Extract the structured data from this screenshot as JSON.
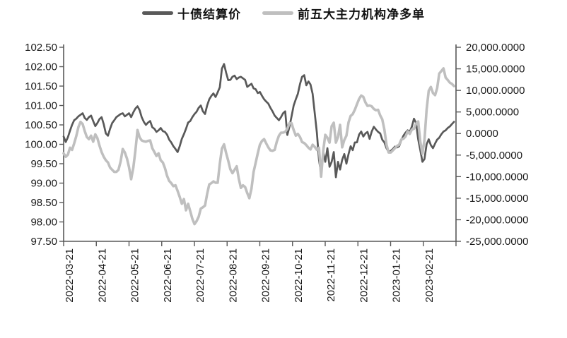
{
  "legend": {
    "items": [
      {
        "label": "十债结算价",
        "color": "#595959"
      },
      {
        "label": "前五大主力机构净多单",
        "color": "#bfbfbf"
      }
    ]
  },
  "chart_data": {
    "type": "line",
    "title": "",
    "legend_position": "top-center",
    "grid": false,
    "x_axis": {
      "tick_labels": [
        "2022-03-21",
        "2022-04-21",
        "2022-05-21",
        "2022-06-21",
        "2022-07-21",
        "2022-08-21",
        "2022-09-21",
        "2022-10-21",
        "2022-11-21",
        "2022-12-21",
        "2023-01-21",
        "2023-02-21"
      ],
      "num_ticks": 13,
      "label_rotation_deg": -90
    },
    "left_axis": {
      "min": 97.5,
      "max": 102.5,
      "step": 0.5,
      "tick_labels": [
        "102.50",
        "102.00",
        "101.50",
        "101.00",
        "100.50",
        "100.00",
        "99.50",
        "99.00",
        "98.50",
        "98.00",
        "97.50"
      ]
    },
    "right_axis": {
      "min": -25000,
      "max": 20000,
      "step": 5000,
      "tick_labels": [
        "20,000.0000",
        "15,000.0000",
        "10,000.0000",
        "5,000.0000",
        "0.0000",
        "-5,000.0000",
        "-10,000.0000",
        "-15,000.0000",
        "-20,000.0000",
        "-25,000.0000"
      ]
    },
    "x_end_fraction": 0.995,
    "series": [
      {
        "name": "十债结算价",
        "axis": "left",
        "color": "#595959",
        "width": 2.7,
        "values": [
          100.2,
          100.06,
          100.18,
          100.35,
          100.5,
          100.62,
          100.66,
          100.72,
          100.76,
          100.8,
          100.68,
          100.63,
          100.7,
          100.74,
          100.6,
          100.47,
          100.55,
          100.65,
          100.7,
          100.52,
          100.28,
          100.22,
          100.4,
          100.55,
          100.62,
          100.7,
          100.74,
          100.78,
          100.8,
          100.72,
          100.76,
          100.8,
          100.7,
          100.82,
          100.92,
          100.98,
          100.88,
          100.7,
          100.58,
          100.5,
          100.56,
          100.6,
          100.44,
          100.4,
          100.32,
          100.36,
          100.42,
          100.34,
          100.32,
          100.25,
          100.12,
          100.05,
          99.95,
          99.88,
          99.8,
          99.95,
          100.14,
          100.26,
          100.4,
          100.56,
          100.6,
          100.7,
          100.78,
          100.84,
          100.94,
          101.0,
          100.85,
          100.78,
          101.0,
          101.16,
          101.25,
          101.31,
          101.22,
          101.34,
          101.47,
          101.95,
          102.07,
          101.85,
          101.65,
          101.66,
          101.74,
          101.77,
          101.68,
          101.72,
          101.74,
          101.7,
          101.66,
          101.48,
          101.52,
          101.56,
          101.44,
          101.42,
          101.32,
          101.35,
          101.25,
          101.16,
          101.1,
          101.05,
          100.94,
          100.85,
          100.74,
          100.68,
          100.62,
          100.7,
          100.8,
          100.85,
          100.24,
          100.45,
          100.72,
          101.0,
          101.16,
          101.3,
          101.55,
          101.74,
          101.78,
          101.52,
          101.62,
          101.54,
          101.3,
          100.8,
          100.3,
          99.6,
          99.25,
          99.8,
          99.55,
          99.9,
          99.42,
          99.55,
          99.8,
          99.15,
          99.55,
          99.35,
          99.6,
          99.75,
          99.5,
          99.75,
          99.95,
          99.85,
          100.05,
          100.05,
          100.25,
          100.33,
          100.2,
          100.28,
          100.32,
          100.14,
          100.33,
          100.45,
          100.38,
          100.32,
          100.28,
          100.12,
          100.05,
          99.9,
          99.8,
          99.83,
          99.88,
          99.94,
          99.92,
          99.95,
          100.1,
          100.22,
          100.3,
          100.36,
          100.32,
          100.45,
          100.66,
          100.55,
          100.13,
          99.85,
          99.55,
          99.62,
          100.0,
          100.13,
          99.98,
          99.9,
          100.02,
          100.12,
          100.17,
          100.26,
          100.33,
          100.36,
          100.42,
          100.46,
          100.52,
          100.58
        ]
      },
      {
        "name": "前五大主力机构净多单",
        "axis": "right",
        "color": "#bfbfbf",
        "width": 3.6,
        "values": [
          -4600,
          -5400,
          -4900,
          -3300,
          -3800,
          -2300,
          -600,
          1500,
          2700,
          2200,
          600,
          -800,
          -1300,
          -500,
          -1900,
          -200,
          -1100,
          -2800,
          -4300,
          -5400,
          -6200,
          -6700,
          -7900,
          -8400,
          -8900,
          -8900,
          -8400,
          -6500,
          -3600,
          -4400,
          -5800,
          -7800,
          -10600,
          -8000,
          -4000,
          800,
          -900,
          -1600,
          -1800,
          -1900,
          -1700,
          -1600,
          -3400,
          -4300,
          -5200,
          -4600,
          -6200,
          -6700,
          -8000,
          -9800,
          -11000,
          -11500,
          -12200,
          -12000,
          -13300,
          -14700,
          -16300,
          -15200,
          -17800,
          -16300,
          -18000,
          -19800,
          -21000,
          -20300,
          -19300,
          -17400,
          -17100,
          -16700,
          -14000,
          -11800,
          -11500,
          -11100,
          -11400,
          -11400,
          -7000,
          -3500,
          -2500,
          -4500,
          -6300,
          -8300,
          -9200,
          -8400,
          -7600,
          -10500,
          -12600,
          -12000,
          -12400,
          -13800,
          -15000,
          -12800,
          -8900,
          -6800,
          -4600,
          -2600,
          -1700,
          -1300,
          -2300,
          -3200,
          -3900,
          -4000,
          -3800,
          -1900,
          -500,
          200,
          200,
          400,
          1100,
          2400,
          2400,
          800,
          -500,
          -100,
          -800,
          -2000,
          -2200,
          -2700,
          -3300,
          -3700,
          -2600,
          -3100,
          -3800,
          -3300,
          -10000,
          -4000,
          -300,
          -1000,
          -2100,
          1700,
          2500,
          -2100,
          -800,
          2000,
          -3200,
          -1500,
          -500,
          2600,
          4100,
          4500,
          5500,
          6800,
          8000,
          8800,
          8500,
          7200,
          6400,
          6500,
          6300,
          5700,
          5400,
          5500,
          4200,
          3300,
          900,
          -2600,
          -4400,
          -4400,
          -3900,
          -3400,
          -2900,
          -2600,
          -1400,
          -1200,
          -700,
          500,
          -100,
          900,
          1100,
          2300,
          2800,
          -1900,
          -4700,
          -1500,
          5500,
          9900,
          10800,
          9400,
          8900,
          10500,
          13900,
          14500,
          15100,
          13000,
          12400,
          11800,
          11500,
          11000
        ]
      }
    ],
    "colors": {
      "axis": "#595959",
      "text": "#1a1a1a"
    }
  }
}
